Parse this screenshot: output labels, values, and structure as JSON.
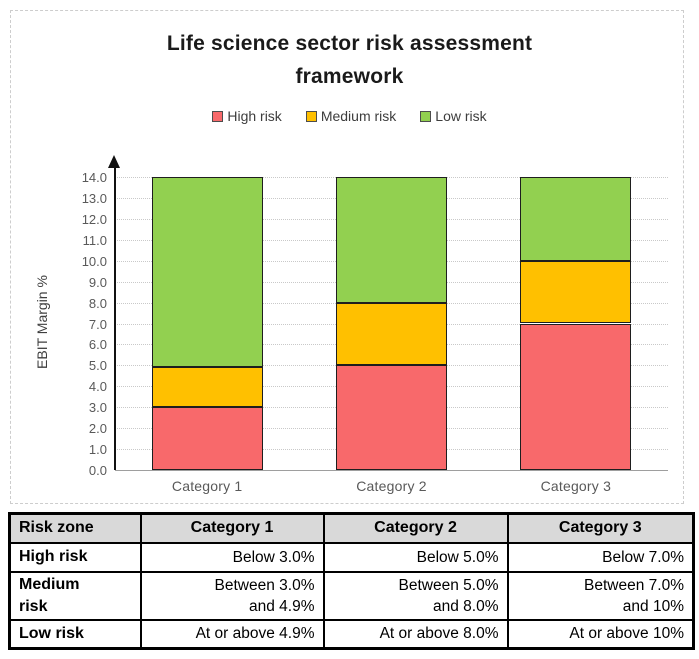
{
  "chart_data": {
    "type": "bar",
    "subtype": "stacked",
    "title": "Life science sector risk assessment framework",
    "title_lines": [
      "Life science sector risk assessment",
      "framework"
    ],
    "xlabel": "",
    "ylabel": "EBIT Margin %",
    "ylim": [
      0,
      14
    ],
    "ytick_step": 1.0,
    "ytick_decimals": 1,
    "grid": "horizontal-dotted",
    "legend_position": "top",
    "categories": [
      "Category 1",
      "Category 2",
      "Category 3"
    ],
    "series": [
      {
        "name": "High risk",
        "color": "#F8696B",
        "values": [
          3.0,
          5.0,
          7.0
        ]
      },
      {
        "name": "Medium risk",
        "color": "#FFC000",
        "values": [
          1.9,
          3.0,
          3.0
        ]
      },
      {
        "name": "Low risk",
        "color": "#92D050",
        "values": [
          9.1,
          6.0,
          4.0
        ]
      }
    ],
    "segment_boundaries": {
      "Category 1": {
        "high_top": "3.0",
        "medium_top": "4.9",
        "low_top": "14.0"
      },
      "Category 2": {
        "high_top": "5.0",
        "medium_top": "8.0",
        "low_top": "14.0"
      },
      "Category 3": {
        "high_top": "7.0",
        "medium_top": "10.0",
        "low_top": "14.0"
      }
    }
  },
  "table": {
    "headers": [
      "Risk zone",
      "Category 1",
      "Category 2",
      "Category 3"
    ],
    "rows": [
      [
        "High risk",
        "Below 3.0%",
        "Below 5.0%",
        "Below 7.0%"
      ],
      [
        "Medium\nrisk",
        "Between 3.0%\nand 4.9%",
        "Between 5.0%\nand 8.0%",
        "Between 7.0%\nand 10%"
      ],
      [
        "Low risk",
        "At or above 4.9%",
        "At or above 8.0%",
        "At or above 10%"
      ]
    ],
    "header_bg": "#d9d9d9"
  }
}
